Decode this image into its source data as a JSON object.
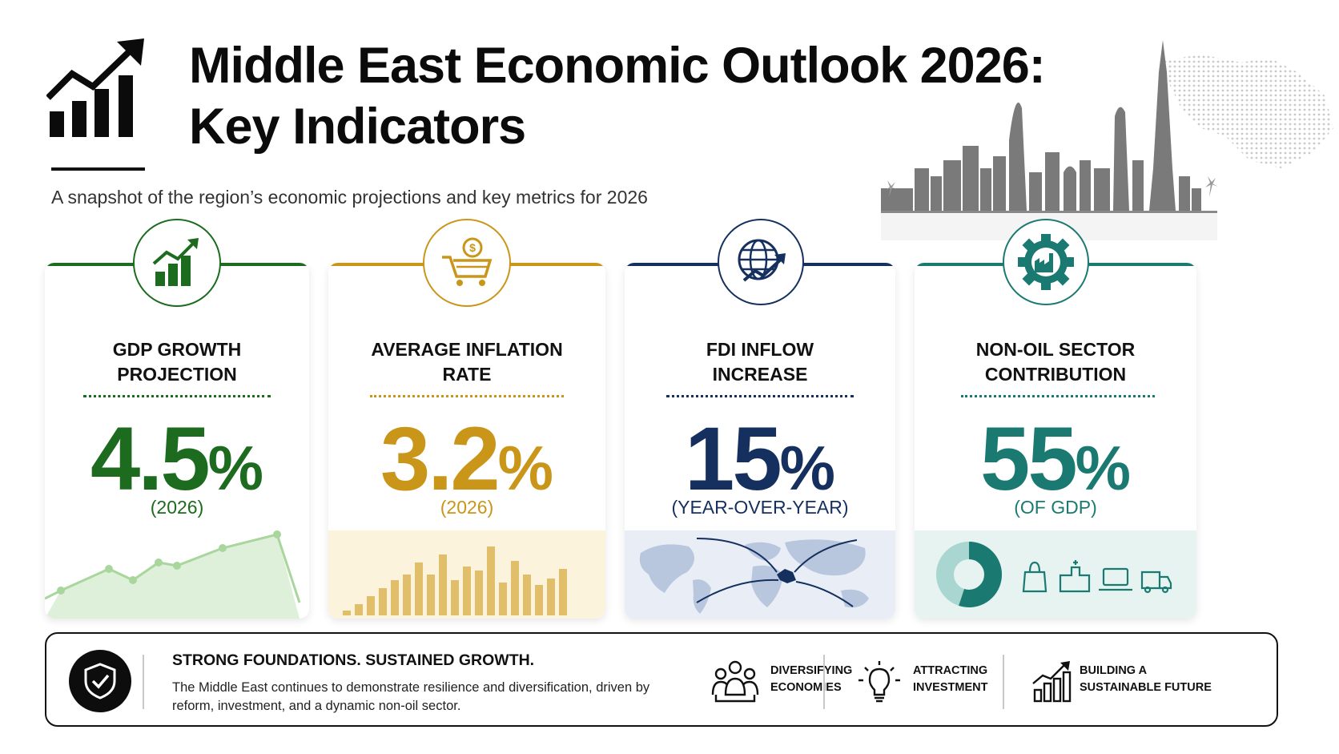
{
  "header": {
    "title_line1": "Middle East Economic Outlook 2026:",
    "title_line2": "Key Indicators",
    "subtitle": "A snapshot of the region’s economic projections and key metrics for 2026",
    "icon": "growth-bar-chart-icon"
  },
  "cards": [
    {
      "label_line1": "GDP GROWTH",
      "label_line2": "PROJECTION",
      "value": "4.5",
      "unit": "%",
      "note": "(2026)",
      "color": "#1c6b1e",
      "icon": "growth-chart-icon",
      "visual": "line-trend"
    },
    {
      "label_line1": "AVERAGE INFLATION",
      "label_line2": "RATE",
      "value": "3.2",
      "unit": "%",
      "note": "(2026)",
      "color": "#c9961a",
      "icon": "shopping-cart-dollar-icon",
      "visual": "bar-histogram"
    },
    {
      "label_line1": "FDI INFLOW",
      "label_line2": "INCREASE",
      "value": "15",
      "unit": "%",
      "note": "(YEAR-OVER-YEAR)",
      "color": "#15305e",
      "icon": "globe-arrow-icon",
      "visual": "world-map-flows"
    },
    {
      "label_line1": "NON-OIL SECTOR",
      "label_line2": "CONTRIBUTION",
      "value": "55",
      "unit": "%",
      "note": "(OF GDP)",
      "color": "#1a7a72",
      "icon": "factory-gear-icon",
      "visual": "donut-and-sector-icons",
      "share": 0.55
    }
  ],
  "bottom": {
    "heading": "STRONG FOUNDATIONS. SUSTAINED GROWTH.",
    "text": "The Middle East continues to demonstrate resilience and diversification, driven by reform, investment, and a dynamic non-oil sector.",
    "icon": "shield-check-icon",
    "pillars": [
      {
        "label": "DIVERSIFYING\nECONOMIES",
        "icon": "people-group-icon"
      },
      {
        "label": "ATTRACTING\nINVESTMENT",
        "icon": "lightbulb-icon"
      },
      {
        "label": "BUILDING A\nSUSTAINABLE FUTURE",
        "icon": "rising-bars-icon"
      }
    ]
  }
}
